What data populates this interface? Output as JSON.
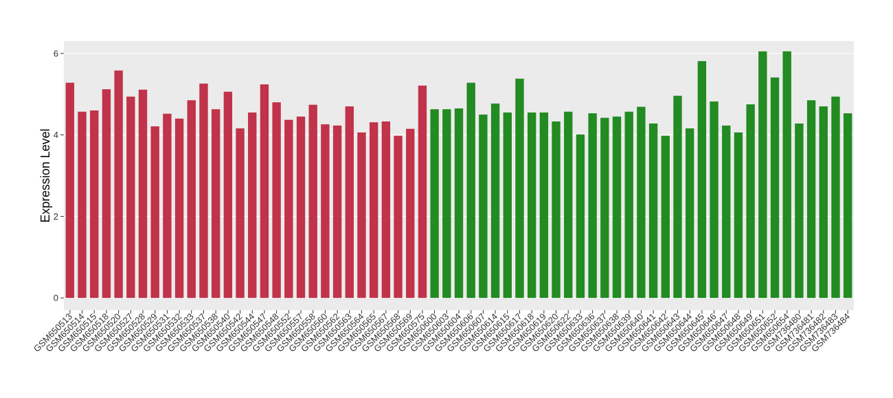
{
  "chart_data": {
    "type": "bar",
    "y_label": "Expression Level",
    "categories": [
      "GSM650513",
      "GSM650514",
      "GSM650515",
      "GSM650518",
      "GSM650520",
      "GSM650527",
      "GSM650528",
      "GSM650529",
      "GSM650531",
      "GSM650532",
      "GSM650533",
      "GSM650537",
      "GSM650538",
      "GSM650540",
      "GSM650542",
      "GSM650544",
      "GSM650547",
      "GSM650548",
      "GSM650552",
      "GSM650557",
      "GSM650558",
      "GSM650560",
      "GSM650562",
      "GSM650563",
      "GSM650564",
      "GSM650565",
      "GSM650567",
      "GSM650568",
      "GSM650569",
      "GSM650575",
      "GSM650600",
      "GSM650603",
      "GSM650604",
      "GSM650606",
      "GSM650607",
      "GSM650614",
      "GSM650615",
      "GSM650617",
      "GSM650618",
      "GSM650619",
      "GSM650620",
      "GSM650622",
      "GSM650633",
      "GSM650636",
      "GSM650637",
      "GSM650638",
      "GSM650639",
      "GSM650640",
      "GSM650641",
      "GSM650642",
      "GSM650643",
      "GSM650644",
      "GSM650645",
      "GSM650646",
      "GSM650647",
      "GSM650648",
      "GSM650649",
      "GSM650651",
      "GSM650652",
      "GSM650654",
      "GSM736480",
      "GSM736481",
      "GSM736482",
      "GSM736483",
      "GSM736484"
    ],
    "values": [
      5.28,
      4.57,
      4.6,
      5.12,
      5.58,
      4.94,
      5.11,
      4.21,
      4.52,
      4.4,
      4.85,
      5.26,
      4.63,
      5.06,
      4.16,
      4.55,
      5.24,
      4.8,
      4.37,
      4.45,
      4.74,
      4.26,
      4.23,
      4.7,
      4.06,
      4.31,
      4.33,
      3.98,
      4.15,
      5.21,
      4.63,
      4.63,
      4.65,
      5.28,
      4.5,
      4.77,
      4.55,
      5.38,
      4.55,
      4.55,
      4.33,
      4.57,
      4.01,
      4.53,
      4.42,
      4.45,
      4.57,
      4.69,
      4.28,
      3.98,
      4.96,
      4.16,
      5.81,
      4.82,
      4.23,
      4.06,
      4.75,
      6.05,
      5.41,
      6.05,
      4.28,
      4.85,
      4.7,
      4.94,
      4.53
    ],
    "colors": [
      "#c0334a",
      "#c0334a",
      "#c0334a",
      "#c0334a",
      "#c0334a",
      "#c0334a",
      "#c0334a",
      "#c0334a",
      "#c0334a",
      "#c0334a",
      "#c0334a",
      "#c0334a",
      "#c0334a",
      "#c0334a",
      "#c0334a",
      "#c0334a",
      "#c0334a",
      "#c0334a",
      "#c0334a",
      "#c0334a",
      "#c0334a",
      "#c0334a",
      "#c0334a",
      "#c0334a",
      "#c0334a",
      "#c0334a",
      "#c0334a",
      "#c0334a",
      "#c0334a",
      "#c0334a",
      "#228b22",
      "#228b22",
      "#228b22",
      "#228b22",
      "#228b22",
      "#228b22",
      "#228b22",
      "#228b22",
      "#228b22",
      "#228b22",
      "#228b22",
      "#228b22",
      "#228b22",
      "#228b22",
      "#228b22",
      "#228b22",
      "#228b22",
      "#228b22",
      "#228b22",
      "#228b22",
      "#228b22",
      "#228b22",
      "#228b22",
      "#228b22",
      "#228b22",
      "#228b22",
      "#228b22",
      "#228b22",
      "#228b22",
      "#228b22",
      "#228b22",
      "#228b22",
      "#228b22",
      "#228b22",
      "#228b22"
    ],
    "ylim": [
      -0.3,
      6.3
    ],
    "yticks": [
      0,
      2,
      4,
      6
    ],
    "grid": true
  }
}
